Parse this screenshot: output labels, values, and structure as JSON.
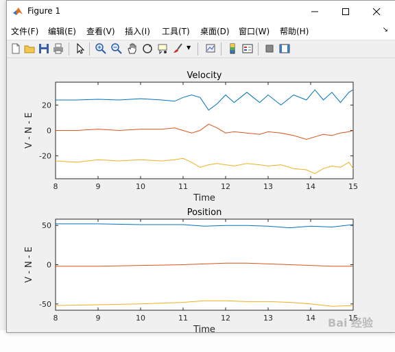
{
  "window": {
    "title": "Figure 1"
  },
  "menu": [
    {
      "label": "文件(F)"
    },
    {
      "label": "编辑(E)"
    },
    {
      "label": "查看(V)"
    },
    {
      "label": "插入(I)"
    },
    {
      "label": "工具(T)"
    },
    {
      "label": "桌面(D)"
    },
    {
      "label": "窗口(W)"
    },
    {
      "label": "帮助(H)"
    }
  ],
  "toolbar_icons": [
    "new-figure",
    "open-file",
    "save",
    "print",
    "pointer",
    "zoom-in",
    "zoom-out",
    "pan",
    "rotate-3d",
    "data-cursor",
    "brush",
    "link-plot",
    "colorbar",
    "legend",
    "hide-plot-tools",
    "show-plot-tools"
  ],
  "colors": {
    "series1": "#0072BD",
    "series2": "#D95319",
    "series3": "#EDB120",
    "axes_bg": "#ffffff",
    "figure_bg": "#f0f0f0"
  },
  "chart_data": [
    {
      "type": "line",
      "title": "Velocity",
      "xlabel": "Time",
      "ylabel": "V - N - E",
      "xlim": [
        8,
        15
      ],
      "ylim": [
        -38,
        38
      ],
      "xticks": [
        "8",
        "9",
        "10",
        "11",
        "12",
        "13",
        "14",
        "15"
      ],
      "yticks": [
        "20",
        "0",
        "-20"
      ],
      "series": [
        {
          "x": [
            8,
            8.5,
            9,
            9.5,
            10,
            10.5,
            10.8,
            11,
            11.2,
            11.4,
            11.6,
            11.8,
            12,
            12.2,
            12.5,
            12.8,
            13,
            13.3,
            13.6,
            13.9,
            14.1,
            14.3,
            14.5,
            14.7,
            14.9,
            15
          ],
          "y": [
            24,
            24,
            24.5,
            24,
            25,
            24,
            23,
            26,
            28,
            26,
            16,
            21,
            28,
            22,
            30,
            22,
            28,
            20,
            28,
            24,
            32,
            24,
            30,
            22,
            30,
            32
          ]
        },
        {
          "x": [
            8,
            8.5,
            9,
            9.5,
            10,
            10.5,
            10.8,
            11,
            11.2,
            11.4,
            11.6,
            11.8,
            12,
            12.2,
            12.5,
            12.8,
            13,
            13.3,
            13.6,
            13.9,
            14.1,
            14.3,
            14.5,
            14.7,
            14.9,
            15
          ],
          "y": [
            0,
            0,
            1,
            0,
            1,
            1,
            2,
            0,
            -2,
            0,
            5,
            2,
            -2,
            -1,
            -2,
            -3,
            -1,
            -2,
            -4,
            -7,
            -5,
            -3,
            -4,
            -2,
            -1,
            0
          ]
        },
        {
          "x": [
            8,
            8.5,
            9,
            9.5,
            10,
            10.5,
            10.8,
            11,
            11.2,
            11.4,
            11.6,
            11.8,
            12,
            12.2,
            12.5,
            12.8,
            13,
            13.3,
            13.6,
            13.9,
            14.1,
            14.3,
            14.5,
            14.7,
            14.9,
            15
          ],
          "y": [
            -24,
            -25,
            -23,
            -24,
            -23,
            -24,
            -23,
            -22,
            -25,
            -29,
            -27,
            -26,
            -27,
            -28,
            -26,
            -27,
            -28,
            -27,
            -30,
            -31,
            -34,
            -30,
            -28,
            -29,
            -25,
            -30
          ]
        }
      ]
    },
    {
      "type": "line",
      "title": "Position",
      "xlabel": "Time",
      "ylabel": "V - N - E",
      "xlim": [
        8,
        15
      ],
      "ylim": [
        -58,
        58
      ],
      "xticks": [
        "8",
        "9",
        "10",
        "11",
        "12",
        "13",
        "14",
        "15"
      ],
      "yticks": [
        "50",
        "0",
        "-50"
      ],
      "series": [
        {
          "x": [
            8,
            9,
            10,
            11,
            11.5,
            12,
            12.5,
            13,
            13.5,
            14,
            14.5,
            15
          ],
          "y": [
            52,
            52,
            51,
            51,
            49,
            50,
            50,
            49,
            47,
            49,
            48,
            51
          ]
        },
        {
          "x": [
            8,
            9,
            10,
            11,
            11.5,
            12,
            12.5,
            13,
            13.5,
            14,
            14.5,
            15
          ],
          "y": [
            -2,
            -2,
            -1,
            0,
            1,
            2,
            2,
            1,
            0,
            -1,
            -2,
            -2
          ]
        },
        {
          "x": [
            8,
            9,
            10,
            11,
            11.5,
            12,
            12.5,
            13,
            13.5,
            14,
            14.5,
            15
          ],
          "y": [
            -52,
            -51,
            -50,
            -48,
            -46,
            -46,
            -47,
            -47,
            -48,
            -50,
            -53,
            -52
          ]
        }
      ]
    }
  ]
}
